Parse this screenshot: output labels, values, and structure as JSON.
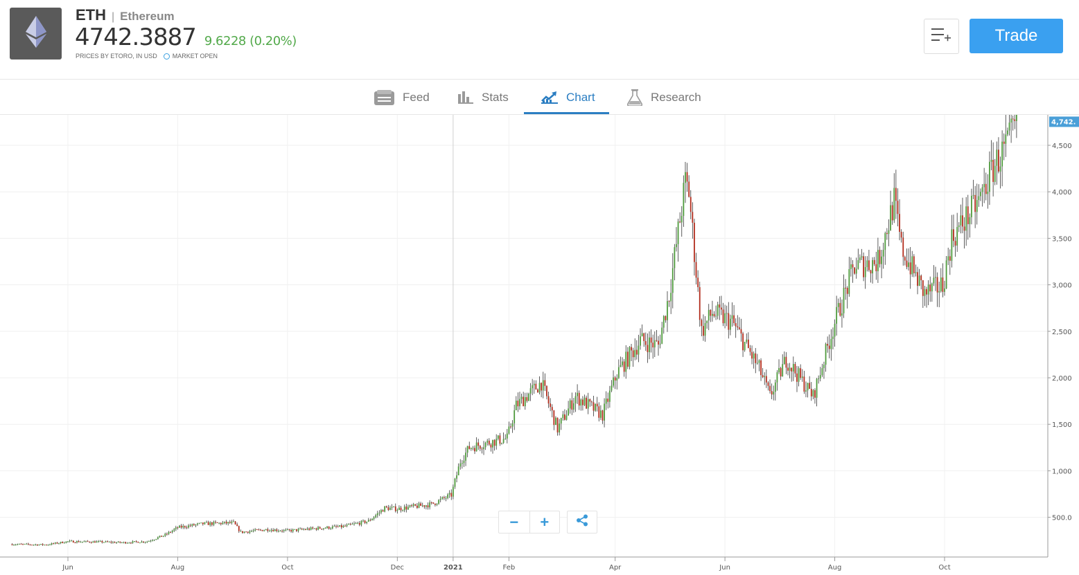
{
  "instrument": {
    "symbol": "ETH",
    "separator": "|",
    "name": "Ethereum",
    "price": "4742.3887",
    "change": "9.6228 (0.20%)",
    "prices_by": "PRICES BY ETORO, IN USD",
    "market_status": "MARKET OPEN",
    "logo_icon": "ethereum-diamond-icon",
    "change_color": "#52a94a"
  },
  "actions": {
    "watchlist_icon": "add-to-list-icon",
    "trade_label": "Trade",
    "trade_color": "#3aa0f0"
  },
  "tabs": [
    {
      "label": "Feed",
      "icon": "feed-icon",
      "active": false
    },
    {
      "label": "Stats",
      "icon": "bar-stats-icon",
      "active": false
    },
    {
      "label": "Chart",
      "icon": "chart-trend-icon",
      "active": true
    },
    {
      "label": "Research",
      "icon": "flask-icon",
      "active": false
    }
  ],
  "chart_controls": {
    "zoom_out": "−",
    "zoom_in": "+",
    "share_icon": "share-icon"
  },
  "chart_data": {
    "type": "candlestick",
    "current_price_label": "4,742.",
    "x_tick_labels": [
      "Jun",
      "Aug",
      "Oct",
      "Dec",
      "2021",
      "Feb",
      "Apr",
      "Jun",
      "Aug",
      "Oct"
    ],
    "y_tick_labels": [
      "500.0",
      "1,000",
      "1,500",
      "2,000",
      "2,500",
      "3,000",
      "3,500",
      "4,000",
      "4,500"
    ],
    "y_ticks": [
      500,
      1000,
      1500,
      2000,
      2500,
      3000,
      3500,
      4000,
      4500
    ],
    "up_color": "#4e9a3c",
    "down_color": "#b22c1c",
    "price_path": [
      [
        "2020-05-01",
        210
      ],
      [
        "2020-05-20",
        205
      ],
      [
        "2020-06-01",
        240
      ],
      [
        "2020-06-20",
        235
      ],
      [
        "2020-07-01",
        228
      ],
      [
        "2020-07-15",
        240
      ],
      [
        "2020-07-25",
        310
      ],
      [
        "2020-08-01",
        390
      ],
      [
        "2020-08-15",
        430
      ],
      [
        "2020-09-01",
        440
      ],
      [
        "2020-09-05",
        340
      ],
      [
        "2020-09-20",
        370
      ],
      [
        "2020-10-01",
        355
      ],
      [
        "2020-10-20",
        385
      ],
      [
        "2020-11-01",
        400
      ],
      [
        "2020-11-15",
        460
      ],
      [
        "2020-11-24",
        600
      ],
      [
        "2020-12-01",
        590
      ],
      [
        "2020-12-20",
        640
      ],
      [
        "2020-12-31",
        740
      ],
      [
        "2021-01-05",
        1100
      ],
      [
        "2021-01-10",
        1250
      ],
      [
        "2021-01-20",
        1300
      ],
      [
        "2021-01-31",
        1350
      ],
      [
        "2021-02-05",
        1700
      ],
      [
        "2021-02-19",
        1950
      ],
      [
        "2021-02-28",
        1450
      ],
      [
        "2021-03-10",
        1800
      ],
      [
        "2021-03-25",
        1600
      ],
      [
        "2021-04-02",
        2050
      ],
      [
        "2021-04-15",
        2400
      ],
      [
        "2021-04-25",
        2350
      ],
      [
        "2021-05-01",
        2900
      ],
      [
        "2021-05-10",
        4100
      ],
      [
        "2021-05-12",
        4000
      ],
      [
        "2021-05-19",
        2500
      ],
      [
        "2021-05-25",
        2700
      ],
      [
        "2021-06-05",
        2600
      ],
      [
        "2021-06-20",
        2100
      ],
      [
        "2021-06-26",
        1800
      ],
      [
        "2021-07-05",
        2200
      ],
      [
        "2021-07-20",
        1800
      ],
      [
        "2021-08-01",
        2600
      ],
      [
        "2021-08-12",
        3200
      ],
      [
        "2021-08-25",
        3250
      ],
      [
        "2021-09-03",
        3900
      ],
      [
        "2021-09-07",
        3400
      ],
      [
        "2021-09-20",
        2900
      ],
      [
        "2021-09-30",
        3000
      ],
      [
        "2021-10-05",
        3500
      ],
      [
        "2021-10-20",
        3900
      ],
      [
        "2021-10-29",
        4300
      ],
      [
        "2021-11-05",
        4500
      ],
      [
        "2021-11-10",
        4742
      ]
    ]
  }
}
